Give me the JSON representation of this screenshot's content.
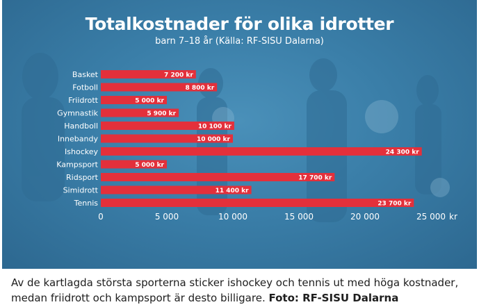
{
  "colors": {
    "bar": "#e3303b",
    "background": "#3a7ea8",
    "text": "#ffffff",
    "axis": "#a9cce2"
  },
  "chart_data": {
    "type": "bar",
    "orientation": "horizontal",
    "title": "Totalkostnader för olika idrotter",
    "subtitle": "barn 7–18 år  (Källa: RF-SISU Dalarna)",
    "categories": [
      "Basket",
      "Fotboll",
      "Friidrott",
      "Gymnastik",
      "Handboll",
      "Innebandy",
      "Ishockey",
      "Kampsport",
      "Ridsport",
      "Simidrott",
      "Tennis"
    ],
    "values": [
      7200,
      8800,
      5000,
      5900,
      10100,
      10000,
      24300,
      5000,
      17700,
      11400,
      23700
    ],
    "value_labels": [
      "7 200 kr",
      "8 800 kr",
      "5 000 kr",
      "5 900 kr",
      "10 100 kr",
      "10 000 kr",
      "24 300 kr",
      "5 000 kr",
      "17 700 kr",
      "11 400 kr",
      "23 700 kr"
    ],
    "x_ticks": [
      0,
      5000,
      10000,
      15000,
      20000,
      25000
    ],
    "x_tick_labels": [
      "0",
      "5 000",
      "10 000",
      "15 000",
      "20 000",
      "25 000"
    ],
    "x_unit": "kr",
    "xlim": [
      0,
      25000
    ],
    "grid": false,
    "legend": "none"
  },
  "caption": {
    "text": "Av de kartlagda största sporterna sticker ishockey och tennis ut med höga kostnader, medan friidrott och kampsport är desto billigare. ",
    "credit": "Foto: RF-SISU Dalarna"
  }
}
